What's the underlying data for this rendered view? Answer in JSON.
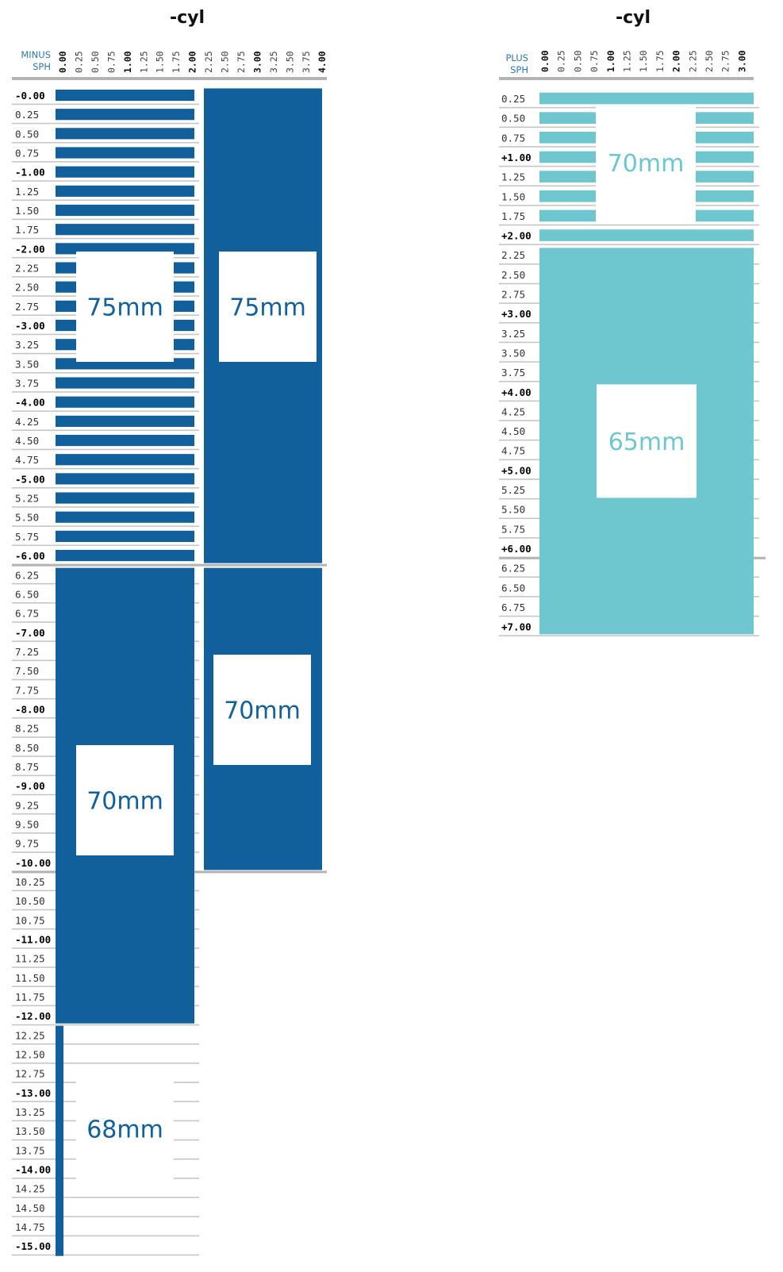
{
  "chart_data": [
    {
      "type": "table",
      "title": "-cyl",
      "row_header": "MINUS",
      "row_header_sub": "SPH",
      "cyl_labels": [
        "0.00",
        "0.25",
        "0.50",
        "0.75",
        "1.00",
        "1.25",
        "1.50",
        "1.75",
        "2.00",
        "2.25",
        "2.50",
        "2.75",
        "3.00",
        "3.25",
        "3.50",
        "3.75",
        "4.00"
      ],
      "sph_labels": [
        "-0.00",
        "0.25",
        "0.50",
        "0.75",
        "-1.00",
        "1.25",
        "1.50",
        "1.75",
        "-2.00",
        "2.25",
        "2.50",
        "2.75",
        "-3.00",
        "3.25",
        "3.50",
        "3.75",
        "-4.00",
        "4.25",
        "4.50",
        "4.75",
        "-5.00",
        "5.25",
        "5.50",
        "5.75",
        "-6.00",
        "6.25",
        "6.50",
        "6.75",
        "-7.00",
        "7.25",
        "7.50",
        "7.75",
        "-8.00",
        "8.25",
        "8.50",
        "8.75",
        "-9.00",
        "9.25",
        "9.50",
        "9.75",
        "-10.00",
        "10.25",
        "10.50",
        "10.75",
        "-11.00",
        "11.25",
        "11.50",
        "11.75",
        "-12.00",
        "12.25",
        "12.50",
        "12.75",
        "-13.00",
        "13.25",
        "13.50",
        "13.75",
        "-14.00",
        "14.25",
        "14.50",
        "14.75",
        "-15.00"
      ],
      "color": "#12609b",
      "blocks": [
        {
          "label": "75mm",
          "sph": [
            0.0,
            6.0
          ],
          "cyl": [
            0.0,
            2.0
          ],
          "style": "striped"
        },
        {
          "label": "75mm",
          "sph": [
            0.0,
            6.0
          ],
          "cyl": [
            2.25,
            4.0
          ],
          "style": "solid"
        },
        {
          "label": "70mm",
          "sph": [
            6.25,
            12.0
          ],
          "cyl": [
            0.0,
            2.0
          ],
          "style": "solid"
        },
        {
          "label": "70mm",
          "sph": [
            6.25,
            10.0
          ],
          "cyl": [
            2.25,
            4.0
          ],
          "style": "solid"
        },
        {
          "label": "68mm",
          "sph": [
            12.25,
            15.0
          ],
          "cyl": [
            0.0,
            0.0
          ],
          "style": "thin"
        }
      ]
    },
    {
      "type": "table",
      "title": "-cyl",
      "row_header": "PLUS",
      "row_header_sub": "SPH",
      "cyl_labels": [
        "0.00",
        "0.25",
        "0.50",
        "0.75",
        "1.00",
        "1.25",
        "1.50",
        "1.75",
        "2.00",
        "2.25",
        "2.50",
        "2.75",
        "3.00"
      ],
      "sph_labels": [
        "0.25",
        "0.50",
        "0.75",
        "+1.00",
        "1.25",
        "1.50",
        "1.75",
        "+2.00",
        "2.25",
        "2.50",
        "2.75",
        "+3.00",
        "3.25",
        "3.50",
        "3.75",
        "+4.00",
        "4.25",
        "4.50",
        "4.75",
        "+5.00",
        "5.25",
        "5.50",
        "5.75",
        "+6.00",
        "6.25",
        "6.50",
        "6.75",
        "+7.00"
      ],
      "color": "#6ec6cf",
      "blocks": [
        {
          "label": "70mm",
          "sph": [
            0.25,
            2.0
          ],
          "cyl": [
            0.0,
            3.0
          ],
          "style": "striped"
        },
        {
          "label": "65mm",
          "sph": [
            2.25,
            7.0
          ],
          "cyl": [
            0.0,
            3.0
          ],
          "style": "solid"
        }
      ]
    }
  ]
}
